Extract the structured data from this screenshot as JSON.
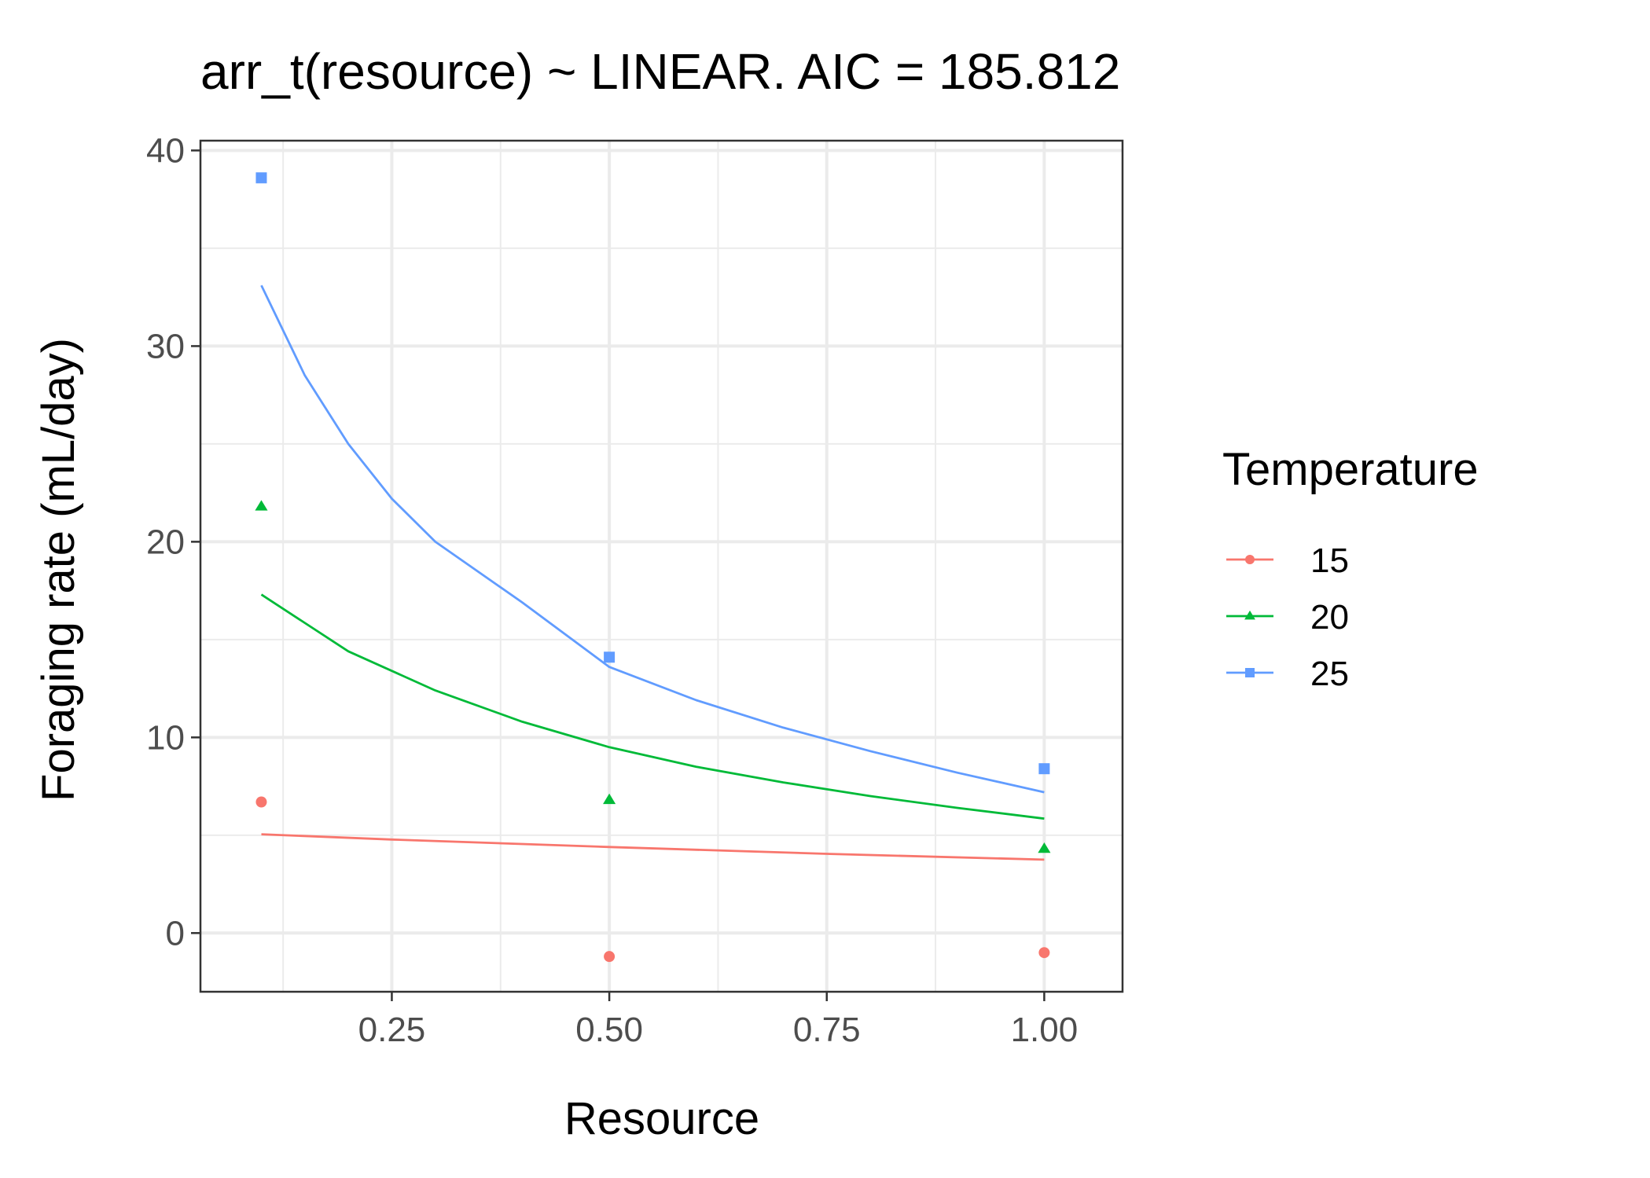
{
  "chart_data": {
    "type": "scatter",
    "title": "arr_t(resource) ~ LINEAR. AIC = 185.812",
    "xlabel": "Resource",
    "ylabel": "Foraging rate (mL/day)",
    "xlim": [
      0.03,
      1.09
    ],
    "ylim": [
      -3,
      40.5
    ],
    "x_ticks": [
      0.25,
      0.5,
      0.75,
      1.0
    ],
    "x_tick_labels": [
      "0.25",
      "0.50",
      "0.75",
      "1.00"
    ],
    "y_ticks": [
      0,
      10,
      20,
      30,
      40
    ],
    "y_tick_labels": [
      "0",
      "10",
      "20",
      "30",
      "40"
    ],
    "grid": true,
    "legend": {
      "title": "Temperature",
      "placement": "right"
    },
    "series": [
      {
        "name": "15",
        "color": "#F8766D",
        "marker": "circle",
        "points": [
          {
            "x": 0.1,
            "y": 6.7
          },
          {
            "x": 0.5,
            "y": -1.2
          },
          {
            "x": 1.0,
            "y": -1.0
          }
        ],
        "fit": [
          {
            "x": 0.1,
            "y": 5.05
          },
          {
            "x": 0.25,
            "y": 4.78
          },
          {
            "x": 0.5,
            "y": 4.4
          },
          {
            "x": 0.75,
            "y": 4.05
          },
          {
            "x": 1.0,
            "y": 3.75
          }
        ]
      },
      {
        "name": "20",
        "color": "#00BA38",
        "marker": "triangle",
        "points": [
          {
            "x": 0.1,
            "y": 21.8
          },
          {
            "x": 0.5,
            "y": 6.8
          },
          {
            "x": 1.0,
            "y": 4.3
          }
        ],
        "fit": [
          {
            "x": 0.1,
            "y": 17.3
          },
          {
            "x": 0.2,
            "y": 14.4
          },
          {
            "x": 0.3,
            "y": 12.4
          },
          {
            "x": 0.4,
            "y": 10.8
          },
          {
            "x": 0.5,
            "y": 9.5
          },
          {
            "x": 0.6,
            "y": 8.5
          },
          {
            "x": 0.7,
            "y": 7.7
          },
          {
            "x": 0.8,
            "y": 7.0
          },
          {
            "x": 0.9,
            "y": 6.4
          },
          {
            "x": 1.0,
            "y": 5.85
          }
        ]
      },
      {
        "name": "25",
        "color": "#619CFF",
        "marker": "square",
        "points": [
          {
            "x": 0.1,
            "y": 38.6
          },
          {
            "x": 0.5,
            "y": 14.1
          },
          {
            "x": 1.0,
            "y": 8.4
          }
        ],
        "fit": [
          {
            "x": 0.1,
            "y": 33.1
          },
          {
            "x": 0.15,
            "y": 28.5
          },
          {
            "x": 0.2,
            "y": 25.0
          },
          {
            "x": 0.25,
            "y": 22.2
          },
          {
            "x": 0.3,
            "y": 20.0
          },
          {
            "x": 0.4,
            "y": 16.9
          },
          {
            "x": 0.5,
            "y": 13.6
          },
          {
            "x": 0.6,
            "y": 11.9
          },
          {
            "x": 0.7,
            "y": 10.5
          },
          {
            "x": 0.8,
            "y": 9.3
          },
          {
            "x": 0.9,
            "y": 8.2
          },
          {
            "x": 1.0,
            "y": 7.2
          }
        ]
      }
    ]
  }
}
